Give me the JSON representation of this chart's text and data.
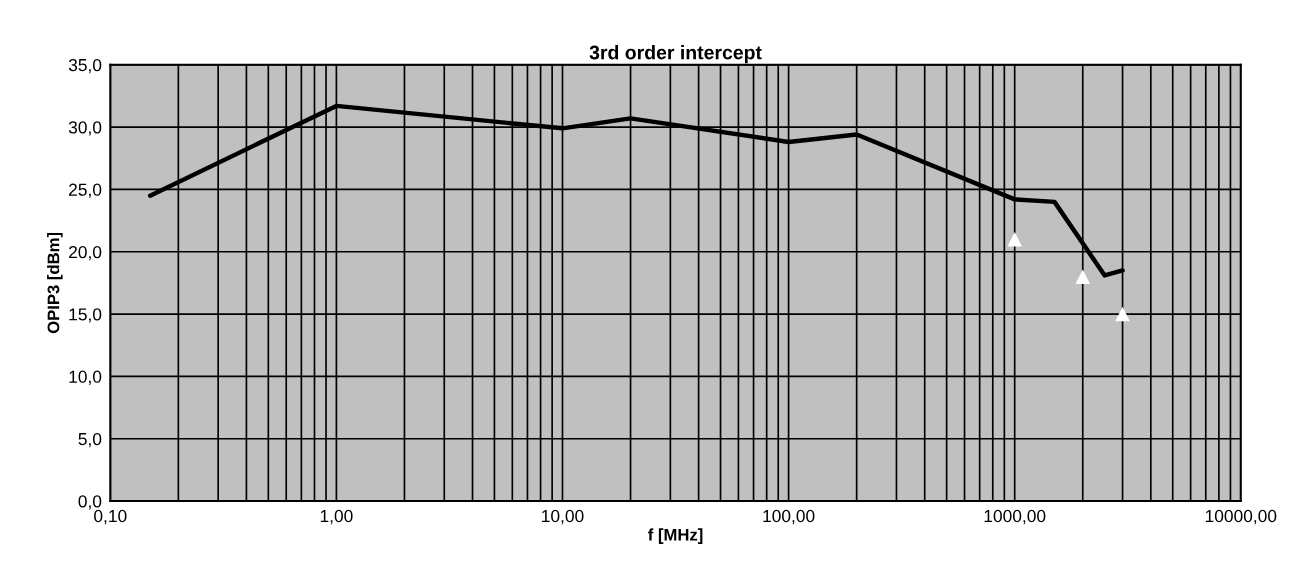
{
  "chart_data": {
    "type": "line",
    "title": "3rd order intercept",
    "xlabel": "f [MHz]",
    "ylabel": "OPIP3 [dBm]",
    "log": "x",
    "grid": true,
    "legend": false,
    "xlim": [
      0.1,
      10000
    ],
    "xticks": [
      {
        "value": 0.1,
        "label": "0,10"
      },
      {
        "value": 1,
        "label": "1,00"
      },
      {
        "value": 10,
        "label": "10,00"
      },
      {
        "value": 100,
        "label": "100,00"
      },
      {
        "value": 1000,
        "label": "1000,00"
      },
      {
        "value": 10000,
        "label": "10000,00"
      }
    ],
    "ylim": [
      0,
      35
    ],
    "yticks": [
      {
        "value": 0,
        "label": "0,0"
      },
      {
        "value": 5,
        "label": "5,0"
      },
      {
        "value": 10,
        "label": "10,0"
      },
      {
        "value": 15,
        "label": "15,0"
      },
      {
        "value": 20,
        "label": "20,0"
      },
      {
        "value": 25,
        "label": "25,0"
      },
      {
        "value": 30,
        "label": "30,0"
      },
      {
        "value": 35,
        "label": "35,0"
      }
    ],
    "series": [
      {
        "color": "#000000",
        "marker": "none",
        "line_style": "solid",
        "x": [
          0.15,
          1,
          10,
          20,
          100,
          200,
          1000,
          1500,
          2500,
          3000
        ],
        "values": [
          24.5,
          31.7,
          29.9,
          30.7,
          28.8,
          29.4,
          24.2,
          24.0,
          18.1,
          18.5
        ]
      },
      {
        "type": "scatter",
        "color": "#ffffff",
        "marker": "triangle",
        "x": [
          1000,
          2000,
          3000
        ],
        "values": [
          21.0,
          18.0,
          15.0
        ]
      }
    ]
  }
}
